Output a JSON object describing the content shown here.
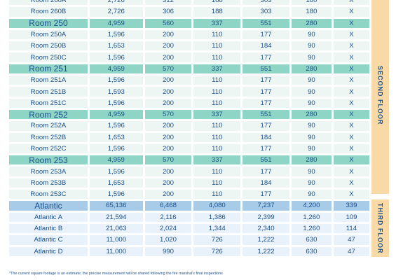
{
  "rows": [
    {
      "name": "Room 260A",
      "v": [
        "2,726",
        "312",
        "188",
        "303",
        "180",
        "X"
      ],
      "type": "sub"
    },
    {
      "name": "Room 260B",
      "v": [
        "2,726",
        "306",
        "188",
        "303",
        "180",
        "X"
      ],
      "type": "sub"
    },
    {
      "name": "Room 250",
      "v": [
        "4,959",
        "560",
        "337",
        "551",
        "280",
        "X"
      ],
      "type": "main"
    },
    {
      "name": "Room 250A",
      "v": [
        "1,596",
        "200",
        "110",
        "177",
        "90",
        "X"
      ],
      "type": "sub"
    },
    {
      "name": "Room 250B",
      "v": [
        "1,653",
        "200",
        "110",
        "184",
        "90",
        "X"
      ],
      "type": "sub"
    },
    {
      "name": "Room 250C",
      "v": [
        "1,596",
        "200",
        "110",
        "177",
        "90",
        "X"
      ],
      "type": "sub"
    },
    {
      "name": "Room 251",
      "v": [
        "4,959",
        "570",
        "337",
        "551",
        "280",
        "X"
      ],
      "type": "main"
    },
    {
      "name": "Room 251A",
      "v": [
        "1,596",
        "200",
        "110",
        "177",
        "90",
        "X"
      ],
      "type": "sub"
    },
    {
      "name": "Room 251B",
      "v": [
        "1,593",
        "200",
        "110",
        "177",
        "90",
        "X"
      ],
      "type": "sub"
    },
    {
      "name": "Room 251C",
      "v": [
        "1,596",
        "200",
        "110",
        "177",
        "90",
        "X"
      ],
      "type": "sub"
    },
    {
      "name": "Room 252",
      "v": [
        "4,959",
        "570",
        "337",
        "551",
        "280",
        "X"
      ],
      "type": "main"
    },
    {
      "name": "Room 252A",
      "v": [
        "1,596",
        "200",
        "110",
        "177",
        "90",
        "X"
      ],
      "type": "sub"
    },
    {
      "name": "Room 252B",
      "v": [
        "1,653",
        "200",
        "110",
        "184",
        "90",
        "X"
      ],
      "type": "sub"
    },
    {
      "name": "Room 252C",
      "v": [
        "1,596",
        "200",
        "110",
        "177",
        "90",
        "X"
      ],
      "type": "sub"
    },
    {
      "name": "Room 253",
      "v": [
        "4,959",
        "570",
        "337",
        "551",
        "280",
        "X"
      ],
      "type": "main"
    },
    {
      "name": "Room 253A",
      "v": [
        "1,596",
        "200",
        "110",
        "177",
        "90",
        "X"
      ],
      "type": "sub"
    },
    {
      "name": "Room 253B",
      "v": [
        "1,653",
        "200",
        "110",
        "184",
        "90",
        "X"
      ],
      "type": "sub"
    },
    {
      "name": "Room 253C",
      "v": [
        "1,596",
        "200",
        "110",
        "177",
        "90",
        "X"
      ],
      "type": "sub"
    },
    {
      "name": "Atlantic",
      "v": [
        "65,136",
        "6,468",
        "4,080",
        "7,237",
        "4,200",
        "339"
      ],
      "type": "third-main"
    },
    {
      "name": "Atlantic A",
      "v": [
        "21,594",
        "2,116",
        "1,386",
        "2,399",
        "1,260",
        "109"
      ],
      "type": "third-sub"
    },
    {
      "name": "Atlantic B",
      "v": [
        "21,063",
        "2,024",
        "1,344",
        "2,340",
        "1,260",
        "114"
      ],
      "type": "third-sub"
    },
    {
      "name": "Atlantic C",
      "v": [
        "11,000",
        "1,020",
        "726",
        "1,222",
        "630",
        "47"
      ],
      "type": "third-sub"
    },
    {
      "name": "Atlantic D",
      "v": [
        "11,000",
        "990",
        "726",
        "1,222",
        "630",
        "47"
      ],
      "type": "third-sub"
    }
  ],
  "floors": {
    "second": "SECOND FLOOR",
    "third": "THIRD FLOOR"
  },
  "footnote": "*The current square footage is an estimate; the precise measurement will be shared following the fire marshal's final inspections",
  "colors": {
    "main_row": "#8fd5c6",
    "sub_row": "#eef6f3",
    "third_main_row": "#a8cbe8",
    "third_sub_row": "#e9f2fa",
    "floor_band": "#f9d9a6",
    "text": "#1a4f8a"
  }
}
